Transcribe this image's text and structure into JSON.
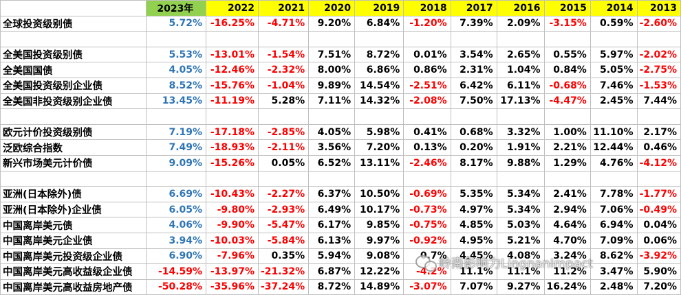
{
  "headers": [
    "",
    "2023年",
    "2022",
    "2021",
    "2020",
    "2019",
    "2018",
    "2017",
    "2016",
    "2015",
    "2014",
    "2013"
  ],
  "rows": [
    [
      "全球投资级别债",
      "5.72%",
      "-16.25%",
      "-4.71%",
      "9.20%",
      "6.84%",
      "-1.20%",
      "7.39%",
      "2.09%",
      "-3.15%",
      "0.59%",
      "-2.60%"
    ],
    null,
    [
      "全美国投资级别债",
      "5.53%",
      "-13.01%",
      "-1.54%",
      "7.51%",
      "8.72%",
      "0.01%",
      "3.54%",
      "2.65%",
      "0.55%",
      "5.97%",
      "-2.02%"
    ],
    [
      "全美国国债",
      "4.05%",
      "-12.46%",
      "-2.32%",
      "8.00%",
      "6.86%",
      "0.86%",
      "2.31%",
      "1.04%",
      "0.84%",
      "5.05%",
      "-2.75%"
    ],
    [
      "全美国投资级别企业债",
      "8.52%",
      "-15.76%",
      "-1.04%",
      "9.89%",
      "14.54%",
      "-2.51%",
      "6.42%",
      "6.11%",
      "-0.68%",
      "7.46%",
      "-1.53%"
    ],
    [
      "全美国非投资级别企业债",
      "13.45%",
      "-11.19%",
      "5.28%",
      "7.11%",
      "14.32%",
      "-2.08%",
      "7.50%",
      "17.13%",
      "-4.47%",
      "2.45%",
      "7.44%"
    ],
    null,
    [
      "欧元计价投资级别债",
      "7.19%",
      "-17.18%",
      "-2.85%",
      "4.05%",
      "5.98%",
      "0.41%",
      "0.68%",
      "3.32%",
      "1.00%",
      "11.10%",
      "2.17%"
    ],
    [
      "泛欧综合指数",
      "7.49%",
      "-18.93%",
      "-2.11%",
      "3.56%",
      "7.20%",
      "0.13%",
      "0.20%",
      "1.91%",
      "2.21%",
      "12.44%",
      "0.46%"
    ],
    [
      "新兴市场美元计价债",
      "9.09%",
      "-15.26%",
      "0.05%",
      "6.52%",
      "13.11%",
      "-2.46%",
      "8.17%",
      "9.88%",
      "1.29%",
      "4.76%",
      "-4.12%"
    ],
    null,
    [
      "亚洲(日本除外)债",
      "6.69%",
      "-10.43%",
      "-2.27%",
      "6.37%",
      "10.50%",
      "-0.69%",
      "5.35%",
      "5.34%",
      "2.41%",
      "7.78%",
      "-1.77%"
    ],
    [
      "亚洲(日本除外)企业债",
      "6.05%",
      "-9.80%",
      "-2.93%",
      "6.49%",
      "10.17%",
      "-0.73%",
      "4.97%",
      "5.34%",
      "2.94%",
      "7.06%",
      "-0.49%"
    ],
    [
      "中国离岸美元债",
      "4.06%",
      "-9.90%",
      "-5.47%",
      "6.17%",
      "9.85%",
      "-0.75%",
      "4.85%",
      "5.03%",
      "4.64%",
      "6.94%",
      "0.04%"
    ],
    [
      "中国离岸美元企业债",
      "3.94%",
      "-10.03%",
      "-5.84%",
      "6.13%",
      "9.97%",
      "-0.92%",
      "4.95%",
      "5.21%",
      "4.70%",
      "7.09%",
      "0.06%"
    ],
    [
      "中国离岸美元投资级企业债",
      "6.90%",
      "-7.96%",
      "0.35%",
      "5.94%",
      "9.08%",
      "0.7%",
      "4.45%",
      "4.08%",
      "3.24%",
      "8.62%",
      "-3.92%"
    ],
    [
      "中国离岸美元高收益级企业债",
      "-14.59%",
      "-13.97%",
      "-21.32%",
      "6.87%",
      "12.22%",
      "-4.2%",
      "11.1%",
      "11.1%",
      "11.2%",
      "3.47%",
      "5.90%"
    ],
    [
      "中国离岸美元高收益房地产债",
      "-50.28%",
      "-35.96%",
      "-37.24%",
      "8.72%",
      "14.89%",
      "-3.07%",
      "7.07%",
      "9.27%",
      "16.24%",
      "2.48%",
      "7.20%"
    ]
  ],
  "watermark": "岭南影响力LingnanImpact",
  "colors": {
    "header_yellow": "#ffff00",
    "header_2023_green": "#92d050",
    "negative_red": "#ff0000",
    "highlight_blue": "#2e75b6",
    "grid": "#bfbfbf"
  }
}
